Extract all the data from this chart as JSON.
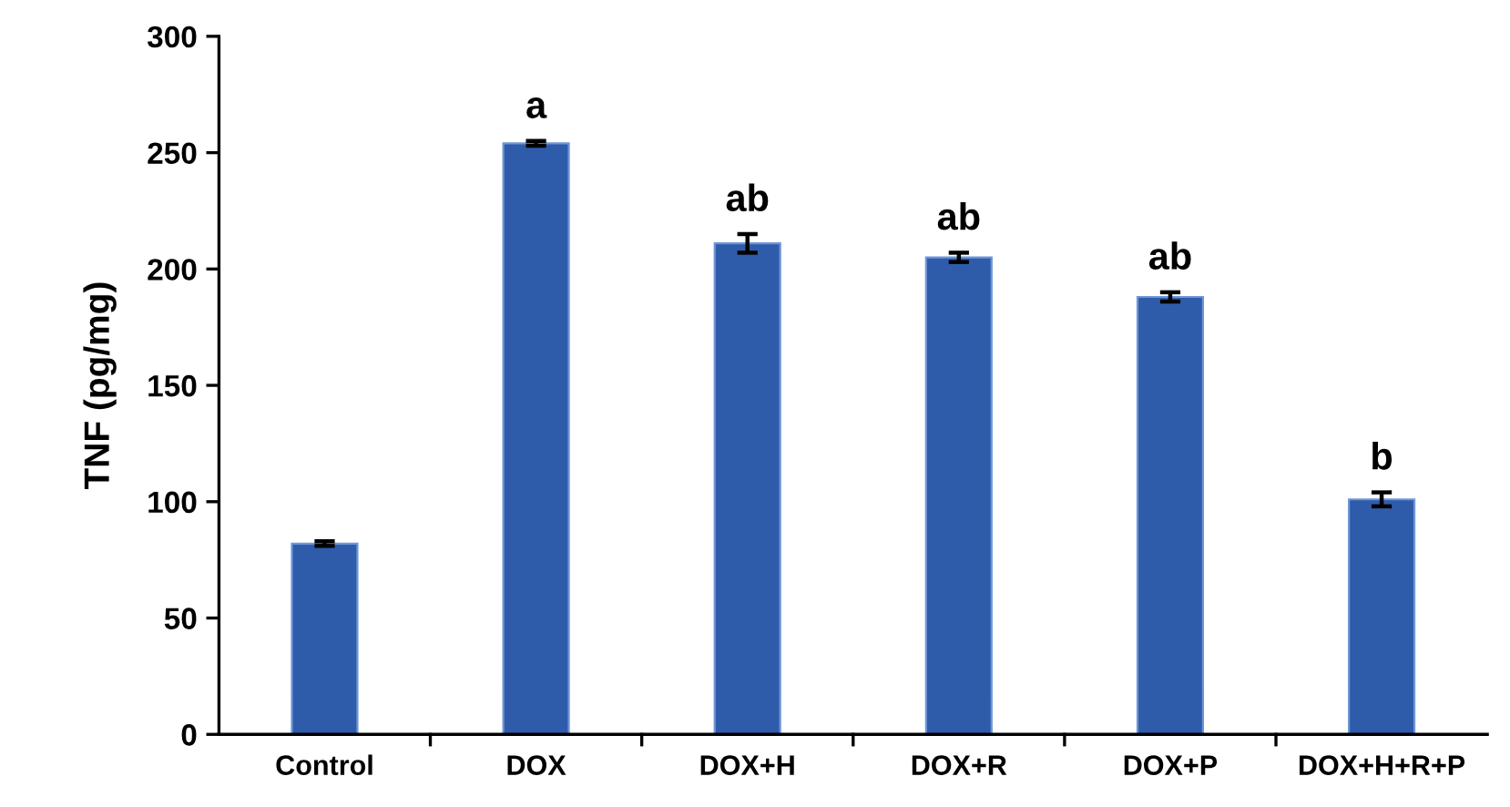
{
  "chart_data": {
    "type": "bar",
    "ylabel": "TNF (pg/mg)",
    "categories": [
      "Control",
      "DOX",
      "DOX+H",
      "DOX+R",
      "DOX+P",
      "DOX+H+R+P"
    ],
    "values": [
      82,
      254,
      211,
      205,
      188,
      101
    ],
    "errors": [
      1,
      1,
      4,
      2,
      2,
      3
    ],
    "color": "#2f5caa",
    "ylim": [
      0,
      300
    ],
    "yticks": [
      0,
      50,
      100,
      150,
      200,
      250,
      300
    ],
    "grid": false,
    "annotations": [
      {
        "text": "a",
        "x": "DOX",
        "y": 255
      },
      {
        "text": "ab",
        "x": "DOX+H",
        "y": 215
      },
      {
        "text": "ab",
        "x": "DOX+R",
        "y": 207
      },
      {
        "text": "ab",
        "x": "DOX+P",
        "y": 190
      },
      {
        "text": "b",
        "x": "DOX+H+R+P",
        "y": 104
      }
    ]
  }
}
